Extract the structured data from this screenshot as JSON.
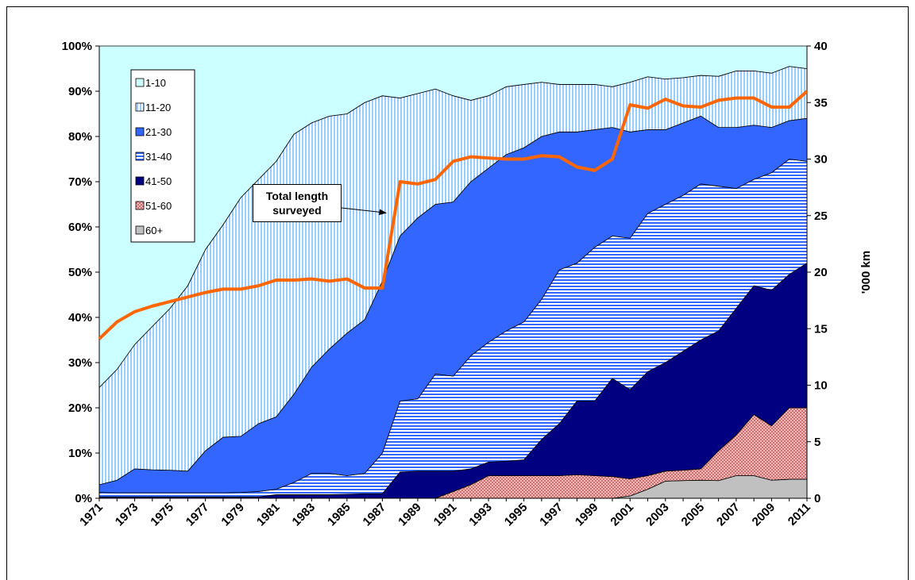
{
  "chart_data": {
    "type": "stacked_area",
    "categories": [
      1971,
      null,
      1973,
      null,
      1975,
      null,
      1977,
      null,
      1979,
      null,
      1981,
      null,
      1983,
      null,
      1985,
      null,
      1987,
      null,
      1989,
      null,
      1991,
      null,
      1993,
      null,
      1995,
      null,
      1997,
      null,
      1999,
      null,
      2001,
      null,
      2003,
      null,
      2005,
      null,
      2007,
      null,
      2009,
      null,
      2011
    ],
    "series": [
      {
        "name": "60+",
        "color": "#c0c0c0",
        "values": [
          0,
          0,
          0,
          0,
          0,
          0,
          0,
          0,
          0,
          0,
          0,
          0,
          0,
          0,
          0,
          0,
          0,
          0,
          0,
          0,
          0,
          0,
          0,
          0,
          0,
          0,
          0,
          0,
          0,
          0,
          0.5,
          2.0,
          3.8,
          3.9,
          4.0,
          3.9,
          5.0,
          5.0,
          4.0,
          4.2,
          4.2
        ]
      },
      {
        "name": "51-60",
        "color": "#cc6666",
        "pattern": "cross",
        "values": [
          0,
          0,
          0,
          0,
          0,
          0,
          0,
          0,
          0,
          0,
          0,
          0,
          0,
          0,
          0,
          0,
          0,
          0,
          0,
          0,
          1.5,
          3.0,
          5.0,
          5.0,
          5.0,
          5.0,
          5.0,
          5.2,
          5.0,
          4.8,
          3.8,
          3.0,
          2.2,
          2.3,
          2.5,
          6.6,
          9.0,
          13.5,
          12.0,
          15.8,
          15.8
        ]
      },
      {
        "name": "41-50",
        "color": "#000080",
        "values": [
          0.3,
          0.3,
          0.3,
          0.3,
          0.3,
          0.3,
          0.3,
          0.3,
          0.3,
          0.3,
          0.8,
          0.8,
          0.8,
          0.8,
          0.9,
          1.0,
          1.0,
          5.8,
          6.0,
          6.0,
          4.5,
          3.5,
          3.0,
          3.2,
          3.5,
          8.0,
          11.5,
          16.3,
          16.5,
          21.7,
          19.7,
          23.0,
          24.0,
          26.3,
          28.5,
          26.5,
          28.0,
          28.5,
          30.0,
          29.5,
          32.0
        ]
      },
      {
        "name": "31-40",
        "color": "#3366ff",
        "pattern": "horizontal",
        "values": [
          1.0,
          0.9,
          0.9,
          0.9,
          0.9,
          0.9,
          0.9,
          0.9,
          1.0,
          1.2,
          1.2,
          2.7,
          4.7,
          4.7,
          4.1,
          4.5,
          9.0,
          15.7,
          16.0,
          21.5,
          21.0,
          25.0,
          26.5,
          28.8,
          30.5,
          31.0,
          34.0,
          30.5,
          34.0,
          31.5,
          33.5,
          35.0,
          35.0,
          34.5,
          34.5,
          32.0,
          26.5,
          23.5,
          26.0,
          25.5,
          22.5
        ]
      },
      {
        "name": "21-30",
        "color": "#3366ff",
        "values": [
          1.7,
          2.8,
          5.3,
          5.1,
          5.0,
          4.8,
          9.3,
          12.3,
          12.4,
          15.0,
          16.0,
          19.5,
          23.5,
          27.5,
          31.5,
          34.0,
          38.0,
          36.5,
          40.0,
          37.5,
          38.5,
          38.5,
          38.5,
          39.0,
          38.5,
          36.0,
          30.5,
          29.0,
          26.0,
          24.0,
          23.5,
          18.5,
          16.5,
          16.0,
          15.0,
          13.0,
          13.5,
          12.0,
          10.0,
          8.5,
          9.5
        ]
      },
      {
        "name": "11-20",
        "color": "#99ccff",
        "pattern": "vertical",
        "values": [
          21.5,
          24.5,
          27.5,
          31.7,
          35.8,
          41.0,
          44.5,
          47.0,
          52.8,
          54.0,
          56.5,
          57.5,
          54.0,
          51.5,
          48.5,
          48.0,
          41.0,
          30.5,
          27.5,
          25.5,
          23.5,
          18.0,
          16.0,
          15.0,
          14.0,
          12.0,
          10.5,
          10.5,
          10.0,
          9.0,
          11.0,
          11.7,
          11.2,
          10.0,
          9.0,
          11.3,
          12.5,
          12.0,
          12.0,
          12.0,
          11.0
        ]
      },
      {
        "name": "1-10",
        "color": "#ccffff",
        "values": [
          75.5,
          71.5,
          66.0,
          62.0,
          58.0,
          53.0,
          45.0,
          39.5,
          33.5,
          29.5,
          25.5,
          19.5,
          17.0,
          15.5,
          15.0,
          12.5,
          11.0,
          11.5,
          10.5,
          9.5,
          11.0,
          12.0,
          11.0,
          9.0,
          8.5,
          8.0,
          8.5,
          8.5,
          8.5,
          9.0,
          8.0,
          6.8,
          7.3,
          7.0,
          6.5,
          6.7,
          5.5,
          5.5,
          6.0,
          4.5,
          5.0
        ]
      }
    ],
    "line": {
      "name": "Total length surveyed",
      "color": "#ff6600",
      "axis": "y2",
      "values": [
        14.1,
        15.6,
        16.5,
        17.0,
        17.4,
        17.8,
        18.2,
        18.5,
        18.5,
        18.8,
        19.3,
        19.3,
        19.4,
        19.2,
        19.4,
        18.6,
        18.6,
        28.0,
        27.8,
        28.2,
        29.8,
        30.2,
        30.1,
        30.0,
        30.0,
        30.3,
        30.2,
        29.3,
        29.0,
        30.0,
        34.8,
        34.5,
        35.3,
        34.7,
        34.6,
        35.2,
        35.4,
        35.4,
        34.6,
        34.6,
        36.0
      ]
    },
    "ylim": [
      0,
      100
    ],
    "yticks": [
      {
        "value": 0,
        "label": "0%"
      },
      {
        "value": 10,
        "label": "10%"
      },
      {
        "value": 20,
        "label": "20%"
      },
      {
        "value": 30,
        "label": "30%"
      },
      {
        "value": 40,
        "label": "40%"
      },
      {
        "value": 50,
        "label": "50%"
      },
      {
        "value": 60,
        "label": "60%"
      },
      {
        "value": 70,
        "label": "70%"
      },
      {
        "value": 80,
        "label": "80%"
      },
      {
        "value": 90,
        "label": "90%"
      },
      {
        "value": 100,
        "label": "100%"
      }
    ],
    "y2lim": [
      0,
      40
    ],
    "y2ticks": [
      0,
      5,
      10,
      15,
      20,
      25,
      30,
      35,
      40
    ],
    "y2label": "'000 km",
    "legend": "upper left"
  }
}
